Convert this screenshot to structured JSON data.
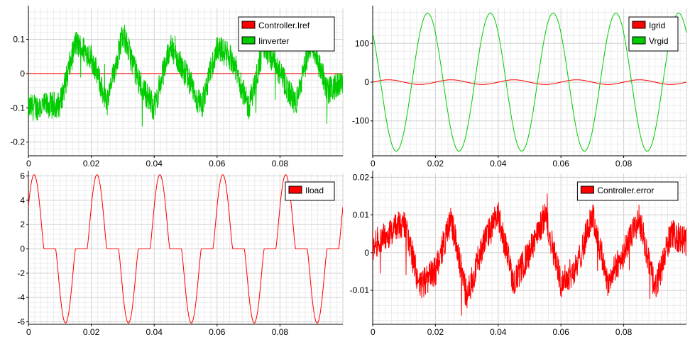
{
  "chart_data": [
    {
      "type": "line",
      "title": "",
      "xlabel": "",
      "ylabel": "",
      "xlim": [
        0,
        0.1
      ],
      "ylim": [
        -0.24,
        0.19
      ],
      "x_ticks": [
        "0",
        "0.02",
        "0.04",
        "0.06",
        "0.08"
      ],
      "y_ticks": [
        "0.1",
        "0",
        "-0.1",
        "-0.2"
      ],
      "y_tick_values": [
        0.1,
        0,
        -0.1,
        -0.2
      ],
      "grid": true,
      "legend_position": "top-right",
      "series": [
        {
          "name": "Controller.Iref",
          "color": "#ff0000",
          "kind": "sine",
          "amplitude": 0.0,
          "frequency": 50,
          "phase": 0.0
        },
        {
          "name": "Iinverter",
          "color": "#00cc00",
          "kind": "noisy-triangle",
          "amplitude": 0.06,
          "frequency": 50,
          "center": 0.0,
          "noise": 0.04,
          "spike_depth": 0.1,
          "x": [
            0,
            0.01,
            0.015,
            0.02,
            0.025,
            0.03,
            0.035,
            0.04,
            0.045,
            0.05,
            0.055,
            0.06,
            0.065,
            0.07,
            0.075,
            0.08,
            0.085,
            0.09,
            0.095,
            0.1
          ],
          "y": [
            -0.1,
            -0.09,
            0.09,
            0.05,
            -0.09,
            0.12,
            -0.02,
            -0.1,
            0.08,
            0.0,
            -0.1,
            0.08,
            0.04,
            -0.1,
            0.08,
            0.0,
            -0.09,
            0.1,
            -0.05,
            -0.03
          ]
        }
      ]
    },
    {
      "type": "line",
      "title": "",
      "xlabel": "",
      "ylabel": "",
      "xlim": [
        0,
        0.1
      ],
      "ylim": [
        -190,
        190
      ],
      "x_ticks": [
        "0",
        "0.02",
        "0.04",
        "0.06",
        "0.08"
      ],
      "y_ticks": [
        "100",
        "0",
        "-100"
      ],
      "y_tick_values": [
        100,
        0,
        -100
      ],
      "grid": true,
      "legend_position": "top-right",
      "series": [
        {
          "name": "Igrid",
          "color": "#ff0000",
          "kind": "sine",
          "amplitude": 6,
          "frequency": 50,
          "phase": 0.0
        },
        {
          "name": "Vrgid",
          "color": "#00cc00",
          "kind": "sine",
          "amplitude": 178,
          "frequency": 50,
          "phase": 2.35
        }
      ]
    },
    {
      "type": "line",
      "title": "",
      "xlabel": "",
      "ylabel": "",
      "xlim": [
        0,
        0.1
      ],
      "ylim": [
        -6.2,
        6.2
      ],
      "x_ticks": [
        "0",
        "0.02",
        "0.04",
        "0.06",
        "0.08"
      ],
      "y_ticks": [
        "6",
        "4",
        "2",
        "0",
        "-2",
        "-4",
        "-6"
      ],
      "y_tick_values": [
        6,
        4,
        2,
        0,
        -2,
        -4,
        -6
      ],
      "grid": true,
      "legend_position": "top-right",
      "series": [
        {
          "name": "Iload",
          "color": "#ff0000",
          "kind": "rectifier",
          "amplitude": 6.1,
          "frequency": 50,
          "phase": 1.0,
          "threshold": 0.55
        }
      ]
    },
    {
      "type": "line",
      "title": "",
      "xlabel": "",
      "ylabel": "",
      "xlim": [
        0,
        0.1
      ],
      "ylim": [
        -0.019,
        0.021
      ],
      "x_ticks": [
        "0",
        "0.02",
        "0.04",
        "0.06",
        "0.08"
      ],
      "y_ticks": [
        "0.02",
        "0.01",
        "0",
        "-0.01"
      ],
      "y_tick_values": [
        0.02,
        0.01,
        0,
        -0.01
      ],
      "grid": true,
      "legend_position": "top-right",
      "series": [
        {
          "name": "Controller.error",
          "color": "#ff0000",
          "kind": "noisy-triangle",
          "amplitude": 0.006,
          "frequency": 50,
          "center": 0.0,
          "noise": 0.004,
          "spike_depth": 0.01,
          "x": [
            0,
            0.01,
            0.015,
            0.02,
            0.025,
            0.03,
            0.035,
            0.04,
            0.045,
            0.05,
            0.055,
            0.06,
            0.065,
            0.07,
            0.075,
            0.08,
            0.085,
            0.09,
            0.095,
            0.1
          ],
          "y": [
            0.002,
            0.008,
            -0.009,
            -0.005,
            0.009,
            -0.012,
            0.002,
            0.01,
            -0.008,
            0.0,
            0.01,
            -0.008,
            -0.004,
            0.01,
            -0.008,
            0.0,
            0.009,
            -0.01,
            0.005,
            0.003
          ]
        }
      ]
    }
  ]
}
